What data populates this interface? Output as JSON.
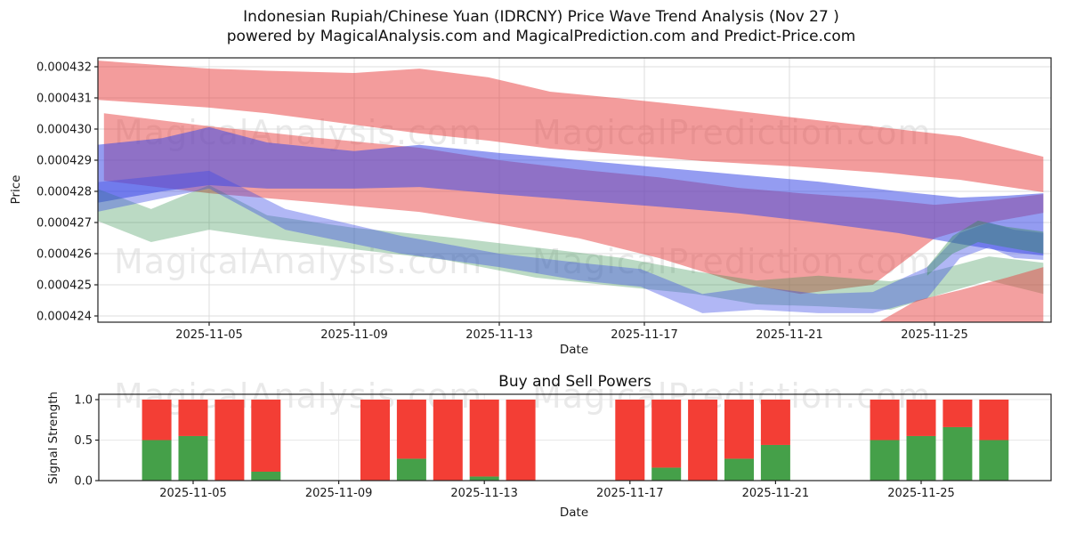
{
  "header": {
    "title_line1": "Indonesian Rupiah/Chinese Yuan (IDRCNY) Price Wave Trend Analysis (Nov 27 )",
    "title_line2": "powered by MagicalAnalysis.com and MagicalPrediction.com and Predict-Price.com"
  },
  "watermarks": {
    "analysis": "MagicalAnalysis.com",
    "prediction": "MagicalPrediction.com"
  },
  "price_chart": {
    "ylabel": "Price",
    "xlabel": "Date",
    "yticks": [
      {
        "label": "0.000424",
        "v": 424
      },
      {
        "label": "0.000425",
        "v": 425
      },
      {
        "label": "0.000426",
        "v": 426
      },
      {
        "label": "0.000427",
        "v": 427
      },
      {
        "label": "0.000428",
        "v": 428
      },
      {
        "label": "0.000429",
        "v": 429
      },
      {
        "label": "0.000430",
        "v": 430
      },
      {
        "label": "0.000431",
        "v": 431
      },
      {
        "label": "0.000432",
        "v": 432
      }
    ],
    "xticks": [
      {
        "label": "2025-11-05",
        "day": 5
      },
      {
        "label": "2025-11-09",
        "day": 9
      },
      {
        "label": "2025-11-13",
        "day": 13
      },
      {
        "label": "2025-11-17",
        "day": 17
      },
      {
        "label": "2025-11-21",
        "day": 21
      },
      {
        "label": "2025-11-25",
        "day": 25
      }
    ]
  },
  "power_chart": {
    "title": "Buy and Sell Powers",
    "ylabel": "Signal Strength",
    "xlabel": "Date",
    "yticks": [
      {
        "label": "0.0",
        "v": 0
      },
      {
        "label": "0.5",
        "v": 0.5
      },
      {
        "label": "1.0",
        "v": 1
      }
    ],
    "xticks": [
      {
        "label": "2025-11-05",
        "day": 5
      },
      {
        "label": "2025-11-09",
        "day": 9
      },
      {
        "label": "2025-11-13",
        "day": 13
      },
      {
        "label": "2025-11-17",
        "day": 17
      },
      {
        "label": "2025-11-21",
        "day": 21
      },
      {
        "label": "2025-11-25",
        "day": 25
      }
    ]
  },
  "colors": {
    "band_red": "#e84242",
    "band_blue": "#3c4be6",
    "band_green": "#2d8c46",
    "bar_red": "#f33e35",
    "bar_green": "#45a049",
    "grid": "#dcdcdc",
    "grid_light": "#e8e8e8",
    "spine": "#222222"
  },
  "chart_data": [
    {
      "type": "area",
      "title": "Indonesian Rupiah/Chinese Yuan (IDRCNY) Price Wave Trend Analysis (Nov 27 )",
      "ylabel": "Price",
      "xlabel": "Date",
      "x_unit": "day of 2025-11",
      "price_unit": 1e-06,
      "ylim_micro": [
        423.8,
        432.3
      ],
      "xlim_days": [
        1.9,
        28.2
      ],
      "grid": true,
      "legend": "none",
      "note": "each band point is [day, top_price_micro, bottom_price_micro]; micro = price x 1e6",
      "bands": [
        {
          "name": "upper_red_band",
          "color": "#e84242",
          "opacity": 0.52,
          "points": [
            [
              1.9,
              432.2,
              430.94
            ],
            [
              5,
              431.94,
              430.69
            ],
            [
              6.6,
              431.87,
              430.51
            ],
            [
              9,
              431.8,
              430.14
            ],
            [
              10.8,
              431.94,
              429.86
            ],
            [
              12.7,
              431.66,
              429.63
            ],
            [
              14.4,
              431.2,
              429.37
            ],
            [
              16.2,
              431.0,
              429.2
            ],
            [
              18.6,
              430.71,
              428.97
            ],
            [
              21.1,
              430.37,
              428.8
            ],
            [
              23.5,
              430.06,
              428.6
            ],
            [
              25.7,
              429.77,
              428.37
            ],
            [
              28,
              429.11,
              427.97
            ]
          ]
        },
        {
          "name": "mid_red_band",
          "color": "#e84242",
          "opacity": 0.5,
          "points": [
            [
              2.1,
              430.51,
              428.34
            ],
            [
              5,
              430.09,
              427.94
            ],
            [
              7.8,
              429.74,
              427.66
            ],
            [
              10.8,
              429.4,
              427.34
            ],
            [
              13,
              429.0,
              426.94
            ],
            [
              15.2,
              428.7,
              426.49
            ],
            [
              17.4,
              428.45,
              425.86
            ],
            [
              19.6,
              428.11,
              425.06
            ],
            [
              21.3,
              427.94,
              424.71
            ],
            [
              23.3,
              427.77,
              425.0
            ],
            [
              25,
              427.57,
              426.49
            ],
            [
              26.5,
              427.71,
              427.0
            ],
            [
              28,
              427.91,
              427.31
            ]
          ]
        },
        {
          "name": "blue_main_band",
          "color": "#3c4be6",
          "opacity": 0.55,
          "points": [
            [
              1.9,
              429.49,
              427.63
            ],
            [
              3.7,
              429.71,
              428.0
            ],
            [
              5,
              430.06,
              428.2
            ],
            [
              6.6,
              429.57,
              428.09
            ],
            [
              9,
              429.29,
              428.09
            ],
            [
              10.8,
              429.49,
              428.14
            ],
            [
              13,
              429.23,
              427.91
            ],
            [
              15.2,
              429.0,
              427.71
            ],
            [
              17.4,
              428.77,
              427.51
            ],
            [
              19.6,
              428.54,
              427.29
            ],
            [
              21.8,
              428.31,
              427.0
            ],
            [
              24,
              428.0,
              426.66
            ],
            [
              25.7,
              427.8,
              426.31
            ],
            [
              27,
              427.86,
              426.06
            ],
            [
              28,
              427.94,
              425.94
            ]
          ]
        },
        {
          "name": "green_main_band",
          "color": "#2d8c46",
          "opacity": 0.32,
          "points": [
            [
              1.9,
              428.09,
              427.06
            ],
            [
              3.4,
              427.43,
              426.37
            ],
            [
              5,
              428.2,
              426.77
            ],
            [
              6.6,
              427.23,
              426.49
            ],
            [
              9,
              426.83,
              426.14
            ],
            [
              11.5,
              426.54,
              425.8
            ],
            [
              14,
              426.2,
              425.23
            ],
            [
              16.4,
              425.86,
              424.94
            ],
            [
              18.4,
              425.43,
              424.71
            ],
            [
              20.1,
              425.14,
              424.37
            ],
            [
              21.8,
              425.29,
              424.31
            ],
            [
              23.8,
              425.11,
              424.2
            ],
            [
              25.2,
              425.51,
              424.71
            ],
            [
              26.5,
              425.91,
              425.14
            ],
            [
              28,
              425.71,
              424.71
            ]
          ]
        },
        {
          "name": "blue_lower_band",
          "color": "#3c4be6",
          "opacity": 0.4,
          "points": [
            [
              1.9,
              428.29,
              427.34
            ],
            [
              5,
              428.66,
              428.09
            ],
            [
              7.1,
              427.43,
              426.77
            ],
            [
              10.3,
              426.57,
              426.0
            ],
            [
              13,
              426.0,
              425.57
            ],
            [
              15.2,
              425.71,
              425.14
            ],
            [
              16.9,
              425.51,
              424.94
            ],
            [
              18.6,
              424.71,
              424.09
            ],
            [
              20.1,
              424.94,
              424.2
            ],
            [
              21.8,
              424.71,
              424.09
            ],
            [
              23.3,
              424.77,
              424.09
            ],
            [
              24.8,
              425.57,
              424.57
            ],
            [
              25.7,
              426.66,
              425.86
            ],
            [
              26.5,
              427.0,
              426.2
            ],
            [
              27.2,
              426.77,
              425.86
            ],
            [
              28,
              426.66,
              425.8
            ]
          ]
        },
        {
          "name": "green_right_knot",
          "color": "#2d8c46",
          "opacity": 0.38,
          "points": [
            [
              24.8,
              425.57,
              425.29
            ],
            [
              25.5,
              426.57,
              426.0
            ],
            [
              26.2,
              427.06,
              426.37
            ],
            [
              27,
              426.86,
              426.2
            ],
            [
              28,
              426.71,
              426.0
            ]
          ]
        },
        {
          "name": "red_lower_right_wedge",
          "color": "#e84242",
          "opacity": 0.5,
          "points": [
            [
              23.5,
              423.83,
              423.8
            ],
            [
              24.5,
              424.49,
              423.8
            ],
            [
              25.7,
              424.83,
              423.8
            ],
            [
              27,
              425.23,
              423.8
            ],
            [
              28,
              425.57,
              423.8
            ]
          ]
        }
      ]
    },
    {
      "type": "bar",
      "stacked": true,
      "title": "Buy and Sell Powers",
      "ylabel": "Signal Strength",
      "xlabel": "Date",
      "ylim": [
        0,
        1.0
      ],
      "categories": [
        "2025-11-04",
        "2025-11-05",
        "2025-11-06",
        "2025-11-07",
        "2025-11-10",
        "2025-11-11",
        "2025-11-12",
        "2025-11-13",
        "2025-11-14",
        "2025-11-17",
        "2025-11-18",
        "2025-11-19",
        "2025-11-20",
        "2025-11-21",
        "2025-11-24",
        "2025-11-25",
        "2025-11-26",
        "2025-11-27"
      ],
      "series": [
        {
          "name": "Buy",
          "color": "#45a049",
          "values": [
            0.5,
            0.55,
            0.0,
            0.11,
            0.0,
            0.27,
            0.0,
            0.05,
            0.0,
            0.0,
            0.16,
            0.0,
            0.27,
            0.44,
            0.5,
            0.55,
            0.66,
            0.5
          ]
        },
        {
          "name": "Sell",
          "color": "#f33e35",
          "values": [
            0.5,
            0.45,
            1.0,
            0.89,
            1.0,
            0.73,
            1.0,
            0.95,
            1.0,
            1.0,
            0.84,
            1.0,
            0.73,
            0.56,
            0.5,
            0.45,
            0.34,
            0.5
          ]
        }
      ]
    }
  ]
}
